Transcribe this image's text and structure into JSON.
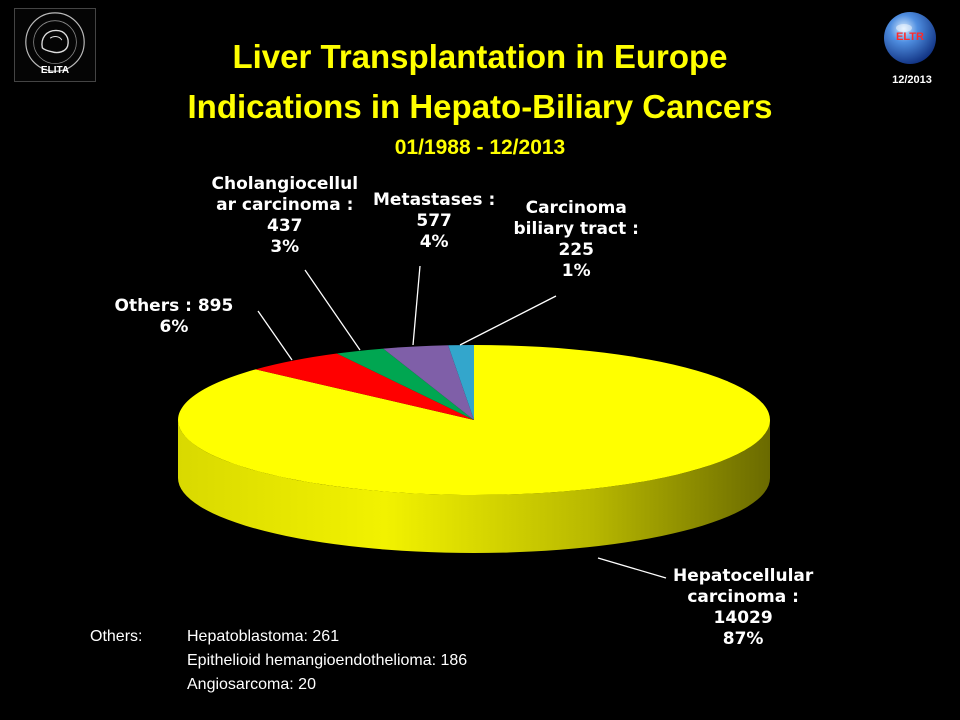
{
  "header": {
    "title_line1": "Liver Transplantation in Europe",
    "title_line2": "Indications in Hepato-Biliary Cancers",
    "subtitle": "01/1988 - 12/2013",
    "left_logo_text": "ELITA",
    "right_logo_text": "ELTR",
    "date_badge": "12/2013"
  },
  "chart_data": {
    "type": "pie",
    "title": "Liver Transplantation in Europe Indications in Hepato-Biliary Cancers",
    "subtitle": "01/1988 - 12/2013",
    "style": "3d",
    "slices": [
      {
        "key": "hcc",
        "label_lines": [
          "Hepatocellular",
          "carcinoma :"
        ],
        "value": 14029,
        "percent": "87%",
        "color": "#ffff00"
      },
      {
        "key": "others",
        "label_lines": [
          "Others : 895"
        ],
        "value": 895,
        "percent": "6%",
        "color": "#ff0000"
      },
      {
        "key": "cholangio",
        "label_lines": [
          "Cholangiocellul",
          "ar carcinoma :"
        ],
        "value": 437,
        "percent": "3%",
        "color": "#00a651"
      },
      {
        "key": "metastases",
        "label_lines": [
          "Metastases :"
        ],
        "value": 577,
        "percent": "4%",
        "color": "#7f5fa8"
      },
      {
        "key": "biliary",
        "label_lines": [
          "Carcinoma",
          "biliary tract :"
        ],
        "value": 225,
        "percent": "1%",
        "color": "#33a6cc"
      }
    ]
  },
  "others_note": {
    "heading": "Others:",
    "items": [
      "Hepatoblastoma: 261",
      "Epithelioid hemangioendothelioma: 186",
      "Angiosarcoma: 20"
    ]
  }
}
